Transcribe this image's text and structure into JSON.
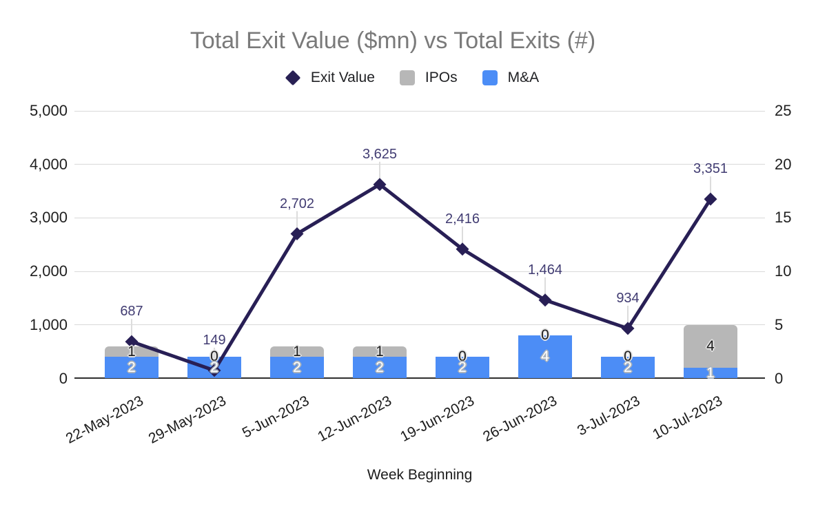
{
  "chart": {
    "title": "Total Exit Value ($mn) vs Total Exits (#)"
  },
  "legend": {
    "items": [
      {
        "label": "Exit Value",
        "shape": "diamond",
        "color": "#282054"
      },
      {
        "label": "IPOs",
        "shape": "square",
        "color": "#b7b7b7"
      },
      {
        "label": "M&A",
        "shape": "square",
        "color": "#4c8df6"
      }
    ]
  },
  "chart_data": {
    "type": "combo",
    "title": "Total Exit Value ($mn) vs Total Exits (#)",
    "xlabel": "Week Beginning",
    "stacked_bars": true,
    "grid": true,
    "legend_position": "top",
    "categories": [
      "22-May-2023",
      "29-May-2023",
      "5-Jun-2023",
      "12-Jun-2023",
      "19-Jun-2023",
      "26-Jun-2023",
      "3-Jul-2023",
      "10-Jul-2023"
    ],
    "series": [
      {
        "name": "Exit Value",
        "type": "line",
        "axis": "left",
        "color": "#281f55",
        "label_color": "#413c72",
        "values": [
          687,
          149,
          2702,
          3625,
          2416,
          1464,
          934,
          3351
        ],
        "labels": [
          "687",
          "149",
          "2,702",
          "3,625",
          "2,416",
          "1,464",
          "934",
          "3,351"
        ]
      },
      {
        "name": "IPOs",
        "type": "bar",
        "axis": "right",
        "color": "#b7b7b7",
        "values": [
          1,
          0,
          1,
          1,
          0,
          0,
          0,
          4
        ]
      },
      {
        "name": "M&A",
        "type": "bar",
        "axis": "right",
        "color": "#4c8df6",
        "values": [
          2,
          2,
          2,
          2,
          2,
          4,
          2,
          1
        ]
      }
    ],
    "left_axis": {
      "min": 0,
      "max": 5000,
      "ticks": [
        "0",
        "1,000",
        "2,000",
        "3,000",
        "4,000",
        "5,000"
      ]
    },
    "right_axis": {
      "min": 0,
      "max": 25,
      "ticks": [
        "0",
        "5",
        "10",
        "15",
        "20",
        "25"
      ]
    }
  }
}
